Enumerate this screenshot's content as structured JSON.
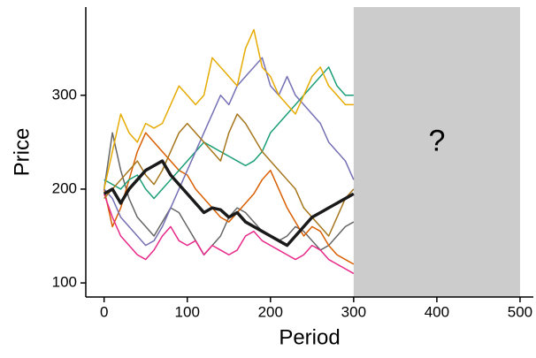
{
  "chart_data": {
    "type": "line",
    "x_label": "Period",
    "y_label": "Price",
    "x": [
      0,
      10,
      20,
      30,
      40,
      50,
      60,
      70,
      80,
      90,
      100,
      110,
      120,
      130,
      140,
      150,
      160,
      170,
      180,
      190,
      200,
      210,
      220,
      230,
      240,
      250,
      260,
      270,
      280,
      290,
      300
    ],
    "series": [
      {
        "color": "#666666",
        "width": 1.5,
        "values": [
          200,
          260,
          220,
          190,
          170,
          160,
          150,
          165,
          180,
          175,
          160,
          145,
          130,
          140,
          150,
          170,
          180,
          175,
          165,
          155,
          150,
          145,
          150,
          160,
          155,
          145,
          135,
          140,
          150,
          160,
          165
        ]
      },
      {
        "color": "#d95f02",
        "width": 1.5,
        "values": [
          200,
          160,
          180,
          210,
          240,
          260,
          250,
          240,
          230,
          220,
          215,
          200,
          190,
          180,
          170,
          165,
          175,
          185,
          195,
          210,
          220,
          200,
          180,
          165,
          150,
          160,
          155,
          140,
          130,
          125,
          120
        ]
      },
      {
        "color": "#1b9e77",
        "width": 1.5,
        "values": [
          210,
          205,
          200,
          210,
          215,
          200,
          190,
          200,
          210,
          220,
          230,
          240,
          250,
          245,
          240,
          235,
          230,
          225,
          230,
          240,
          260,
          270,
          280,
          290,
          300,
          310,
          320,
          330,
          310,
          300,
          300
        ]
      },
      {
        "color": "#7570b3",
        "width": 1.5,
        "values": [
          200,
          190,
          170,
          160,
          150,
          140,
          145,
          160,
          180,
          200,
          220,
          240,
          260,
          280,
          300,
          290,
          310,
          320,
          330,
          340,
          310,
          300,
          320,
          300,
          290,
          280,
          270,
          250,
          240,
          230,
          210
        ]
      },
      {
        "color": "#e7298a",
        "width": 1.5,
        "values": [
          195,
          170,
          150,
          140,
          130,
          125,
          135,
          150,
          160,
          145,
          140,
          145,
          130,
          140,
          135,
          130,
          135,
          150,
          155,
          145,
          140,
          135,
          130,
          125,
          130,
          140,
          135,
          125,
          120,
          115,
          110
        ]
      },
      {
        "color": "#a6761d",
        "width": 1.5,
        "values": [
          190,
          200,
          210,
          220,
          230,
          215,
          205,
          220,
          240,
          260,
          270,
          260,
          250,
          240,
          230,
          260,
          280,
          270,
          255,
          240,
          230,
          220,
          210,
          200,
          180,
          170,
          160,
          150,
          170,
          190,
          200
        ]
      },
      {
        "color": "#e6ab02",
        "width": 1.5,
        "values": [
          200,
          240,
          280,
          260,
          250,
          270,
          265,
          270,
          290,
          310,
          300,
          290,
          300,
          340,
          330,
          320,
          310,
          350,
          370,
          330,
          320,
          300,
          290,
          280,
          300,
          320,
          330,
          310,
          300,
          290,
          290
        ]
      },
      {
        "color": "#1a1a1a",
        "width": 3.5,
        "values": [
          195,
          200,
          185,
          200,
          210,
          220,
          225,
          230,
          215,
          205,
          195,
          185,
          175,
          180,
          178,
          170,
          175,
          165,
          160,
          155,
          150,
          145,
          140,
          150,
          160,
          170,
          175,
          180,
          185,
          190,
          195
        ]
      }
    ],
    "shade": [
      300,
      500
    ],
    "shade_color": "#cccccc",
    "shade_label": "?",
    "xlim": [
      -22,
      516
    ],
    "ylim": [
      85,
      394
    ],
    "xticks": [
      0,
      100,
      200,
      300,
      400,
      500
    ],
    "yticks": [
      100,
      200,
      300
    ]
  }
}
